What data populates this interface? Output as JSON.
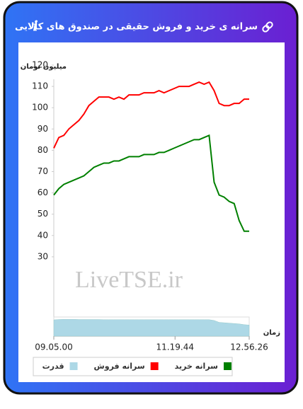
{
  "chart_data": {
    "type": "line",
    "title": "سرانه ی خرید و فروش حقیقی در صندوق های کالایی",
    "y_label": "میلیون تومان",
    "x_label": "زمان",
    "watermark": "LiveTSE.ir",
    "x": [
      0,
      1,
      2,
      3,
      4,
      5,
      6,
      7,
      8,
      9,
      10,
      11,
      12,
      13,
      14,
      15,
      16,
      17,
      18,
      19,
      20,
      21,
      22,
      23,
      24,
      25,
      26,
      27,
      28,
      29,
      30,
      31,
      32,
      33,
      34,
      35,
      36,
      37,
      38,
      39
    ],
    "xlim": [
      0,
      39
    ],
    "xticks": [
      {
        "value": 0,
        "label": "09.05.00"
      },
      {
        "value": 24.2,
        "label": "11.19.44"
      },
      {
        "value": 39,
        "label": "12.56.26"
      }
    ],
    "ylim": [
      20,
      120
    ],
    "yticks": [
      30,
      40,
      50,
      60,
      70,
      80,
      90,
      100,
      110,
      120
    ],
    "navigator_ylim": [
      0,
      1
    ],
    "series": [
      {
        "name": "قدرت",
        "color": "#add8e6",
        "axis": "navigator",
        "values": [
          0.85,
          0.87,
          0.88,
          0.88,
          0.88,
          0.87,
          0.87,
          0.87,
          0.87,
          0.87,
          0.86,
          0.86,
          0.86,
          0.86,
          0.86,
          0.86,
          0.86,
          0.86,
          0.86,
          0.86,
          0.86,
          0.86,
          0.86,
          0.86,
          0.86,
          0.86,
          0.86,
          0.86,
          0.86,
          0.86,
          0.86,
          0.86,
          0.82,
          0.72,
          0.7,
          0.68,
          0.66,
          0.64,
          0.6,
          0.58
        ]
      },
      {
        "name": "سرانه فروش",
        "color": "#ff0000",
        "values": [
          81,
          86,
          87,
          90,
          92,
          94,
          97,
          101,
          103,
          105,
          105,
          105,
          104,
          105,
          104,
          106,
          106,
          106,
          107,
          107,
          107,
          108,
          107,
          108,
          109,
          110,
          110,
          110,
          111,
          112,
          111,
          112,
          108,
          102,
          101,
          101,
          102,
          102,
          104,
          104
        ]
      },
      {
        "name": "سرانه خرید",
        "color": "#008000",
        "values": [
          59,
          62,
          64,
          65,
          66,
          67,
          68,
          70,
          72,
          73,
          74,
          74,
          75,
          75,
          76,
          77,
          77,
          77,
          78,
          78,
          78,
          79,
          79,
          80,
          81,
          82,
          83,
          84,
          85,
          85,
          86,
          87,
          65,
          59,
          58,
          56,
          55,
          47,
          42,
          42
        ]
      }
    ]
  }
}
